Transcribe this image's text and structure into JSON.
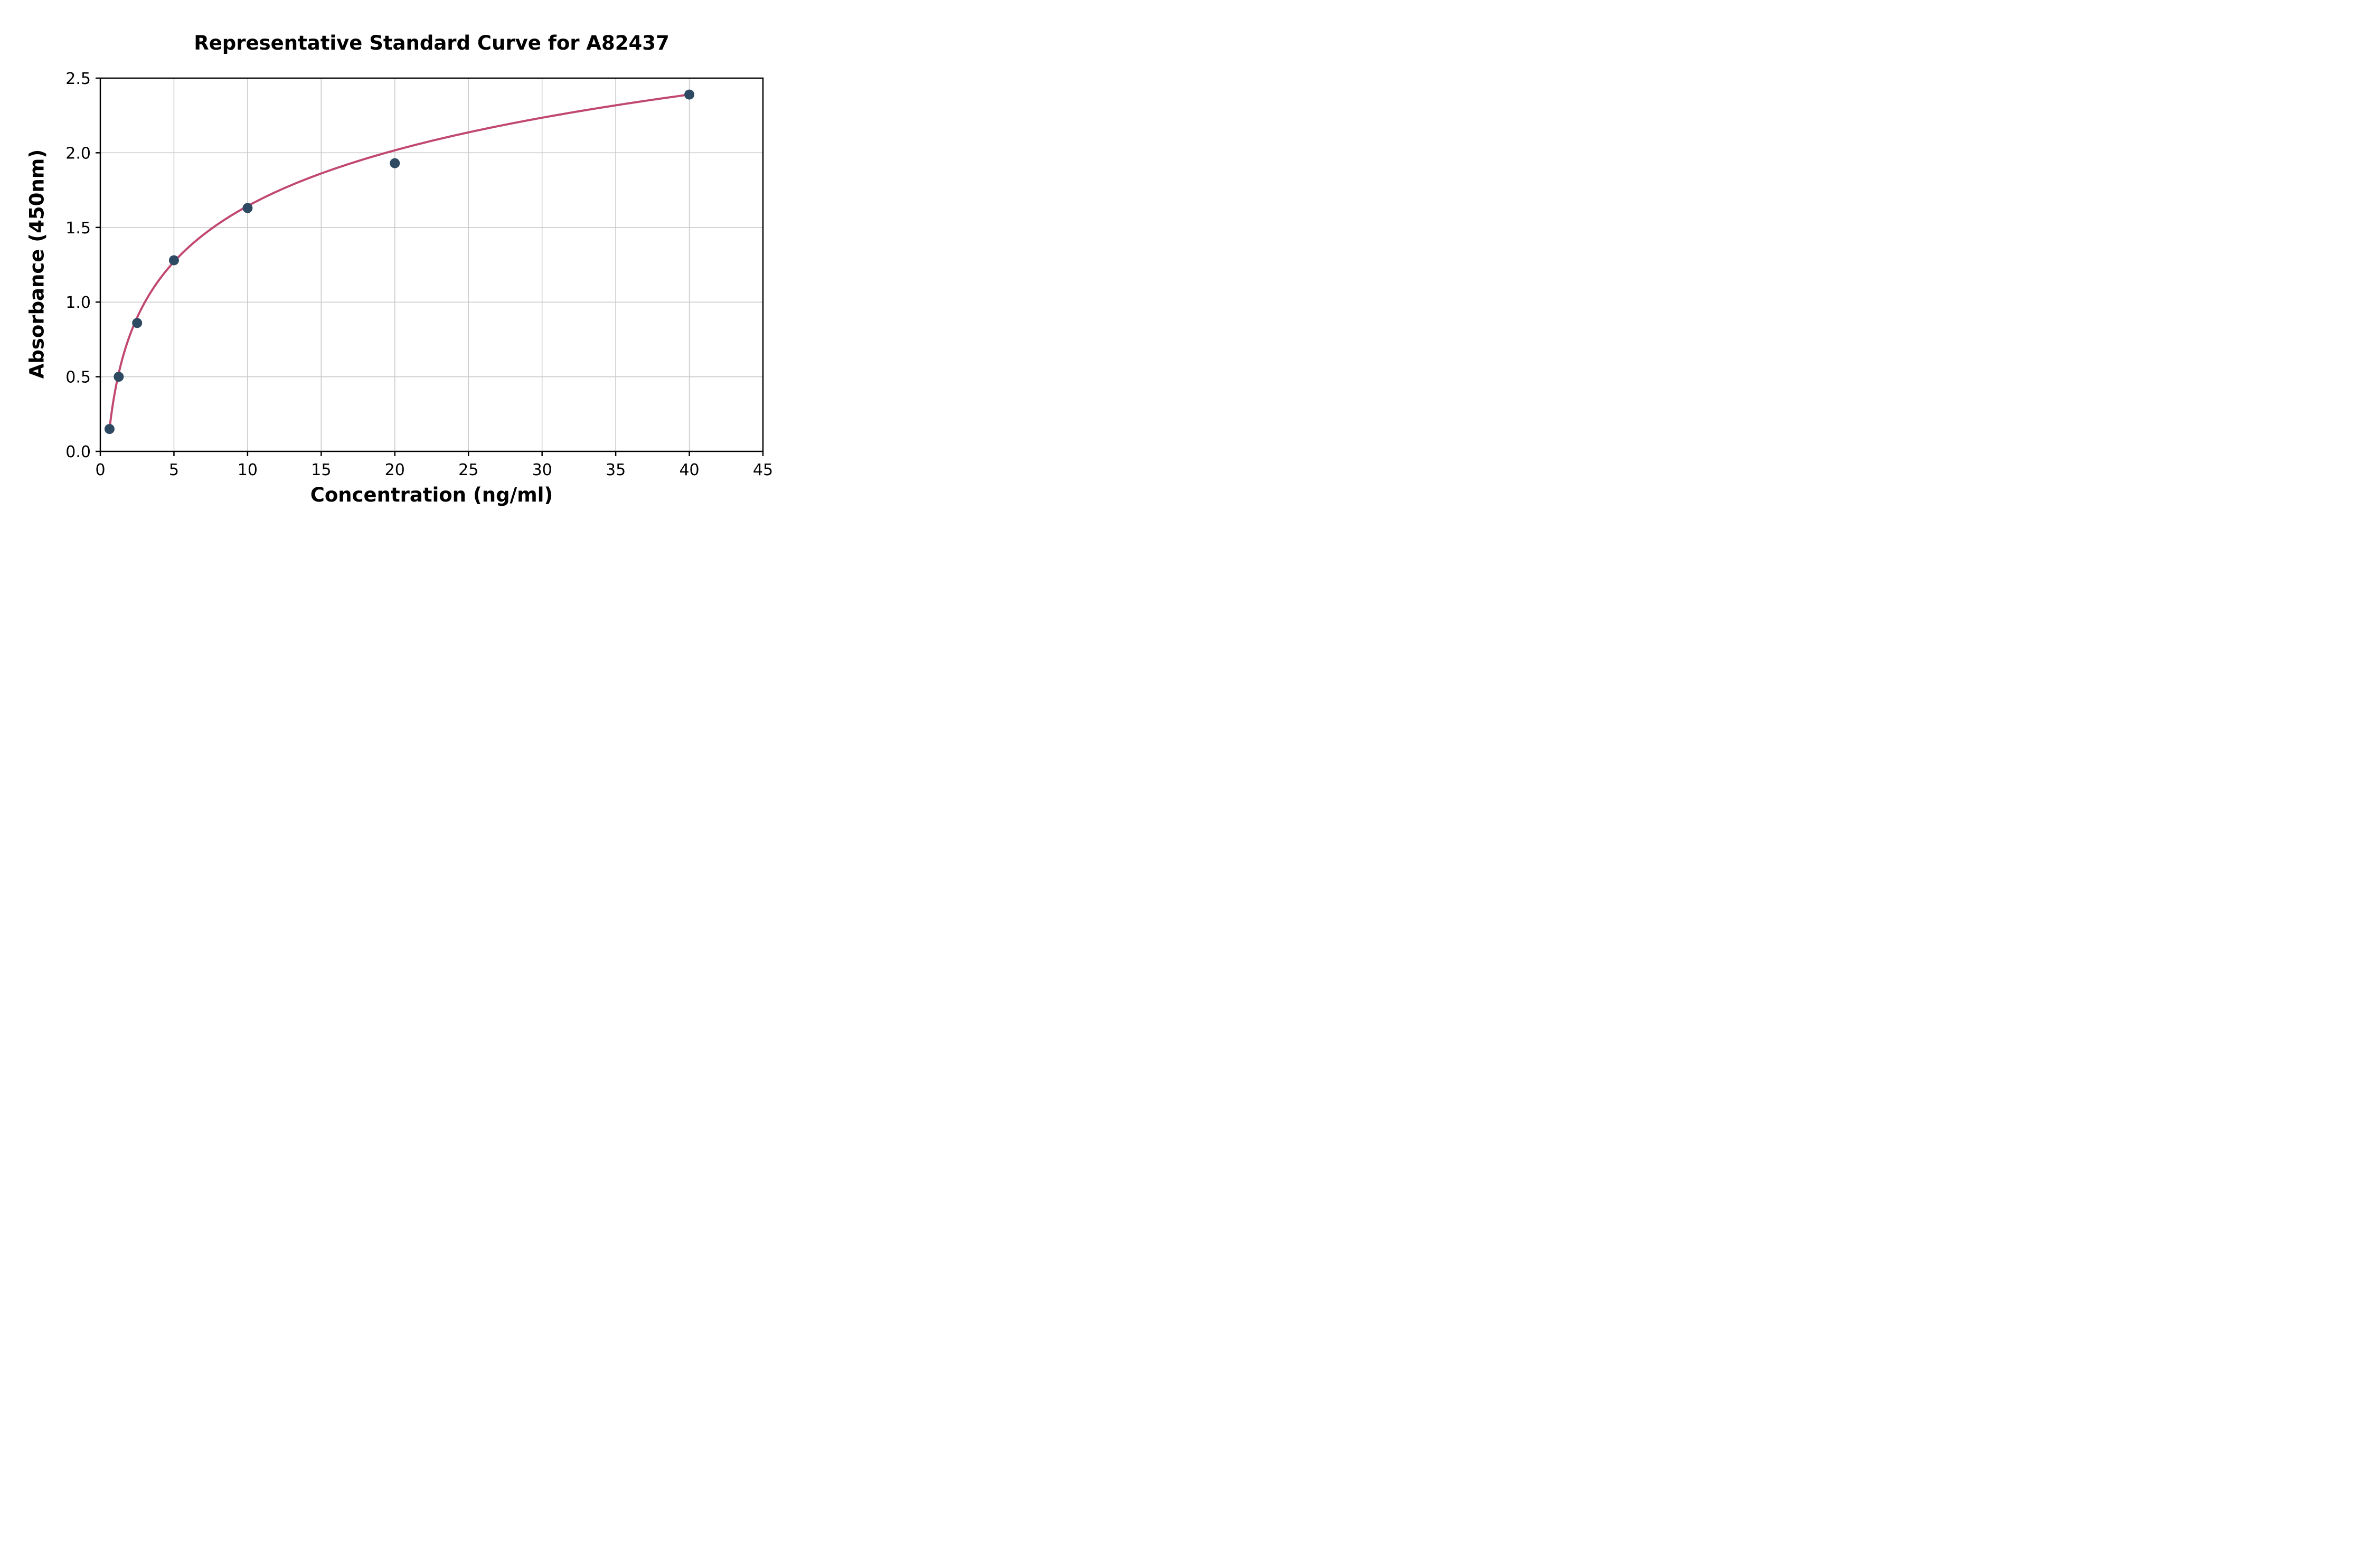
{
  "chart_data": {
    "type": "scatter",
    "title": "Representative Standard Curve for A82437",
    "xlabel": "Concentration (ng/ml)",
    "ylabel": "Absorbance (450nm)",
    "xlim": [
      0,
      45
    ],
    "ylim": [
      0,
      2.5
    ],
    "grid": true,
    "legend": "none",
    "x_ticks": {
      "values": [
        0,
        5,
        10,
        15,
        20,
        25,
        30,
        35,
        40,
        45
      ],
      "labels": [
        "0",
        "5",
        "10",
        "15",
        "20",
        "25",
        "30",
        "35",
        "40",
        "45"
      ]
    },
    "y_ticks": {
      "values": [
        0,
        0.5,
        1.0,
        1.5,
        2.0,
        2.5
      ],
      "labels": [
        "0.0",
        "0.5",
        "1.0",
        "1.5",
        "2.0",
        "2.5"
      ]
    },
    "points": [
      {
        "x": 0.625,
        "y": 0.15
      },
      {
        "x": 1.25,
        "y": 0.5
      },
      {
        "x": 2.5,
        "y": 0.86
      },
      {
        "x": 5,
        "y": 1.28
      },
      {
        "x": 10,
        "y": 1.63
      },
      {
        "x": 20,
        "y": 1.93
      },
      {
        "x": 40,
        "y": 2.39
      }
    ],
    "fit": {
      "type": "logarithmic",
      "a": 0.403,
      "b": 0.5386,
      "x_start": 0.6,
      "x_end": 40.0
    },
    "colors": {
      "curve": "#c1486f",
      "points": "#2e4a63",
      "grid": "#c8c8c8",
      "spine": "#000000"
    }
  }
}
